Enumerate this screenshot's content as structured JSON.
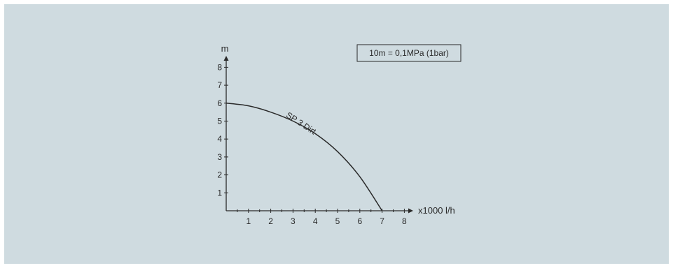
{
  "colors": {
    "background": "#cfdbe0",
    "ink": "#2a2a2a"
  },
  "note": "10m = 0,1MPa (1bar)",
  "chart_data": {
    "type": "line",
    "title": "",
    "xlabel": "x1000 l/h",
    "ylabel": "m",
    "xlim": [
      0,
      8
    ],
    "ylim": [
      0,
      8
    ],
    "x_ticks": [
      "1",
      "2",
      "3",
      "4",
      "5",
      "6",
      "7",
      "8"
    ],
    "y_ticks": [
      "1",
      "2",
      "3",
      "4",
      "5",
      "6",
      "7",
      "8"
    ],
    "grid": false,
    "legend": "none",
    "series": [
      {
        "name": "SP 3 Dirt",
        "x": [
          0,
          1,
          2,
          3,
          4,
          5,
          6,
          7
        ],
        "y": [
          6.0,
          5.85,
          5.5,
          5.0,
          4.3,
          3.3,
          1.9,
          0.0
        ]
      }
    ]
  }
}
